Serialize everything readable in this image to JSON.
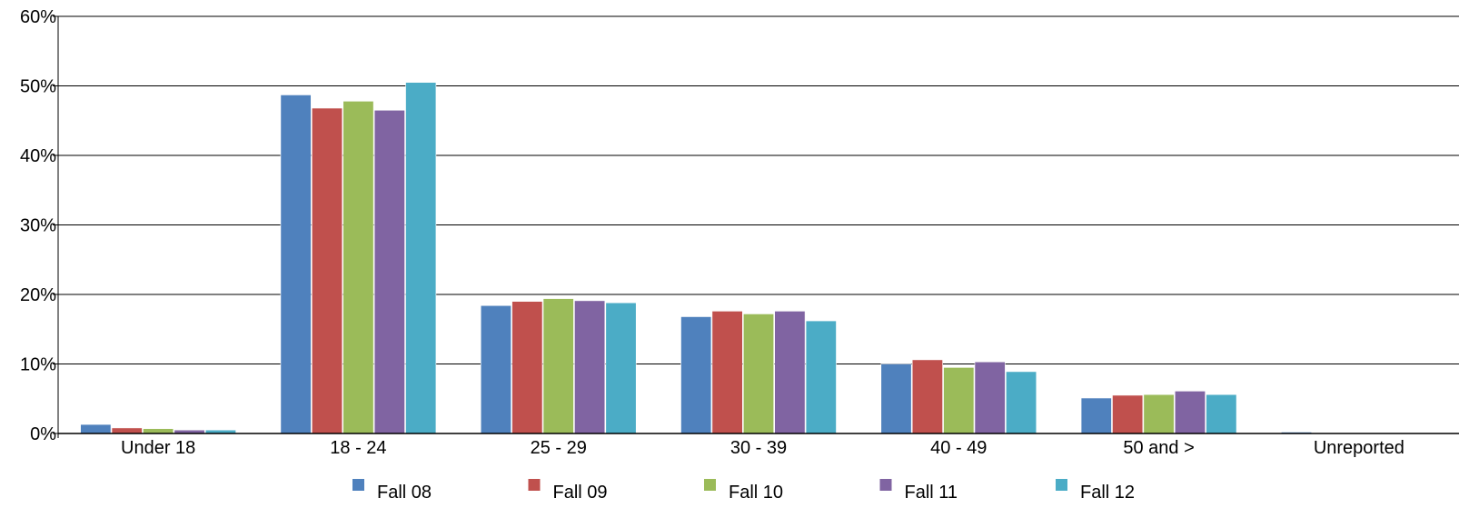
{
  "chart_data": {
    "type": "bar",
    "categories": [
      "Under 18",
      "18 - 24",
      "25 - 29",
      "30 - 39",
      "40 - 49",
      "50 and >",
      "Unreported"
    ],
    "series": [
      {
        "name": "Fall 08",
        "color": "#4f81bd",
        "values": [
          1.3,
          48.7,
          18.4,
          16.8,
          10.0,
          5.1,
          0.2
        ]
      },
      {
        "name": "Fall 09",
        "color": "#c0504d",
        "values": [
          0.8,
          46.8,
          19.0,
          17.6,
          10.6,
          5.5,
          0.1
        ]
      },
      {
        "name": "Fall 10",
        "color": "#9bbb59",
        "values": [
          0.7,
          47.8,
          19.4,
          17.2,
          9.5,
          5.6,
          0.1
        ]
      },
      {
        "name": "Fall 11",
        "color": "#8064a2",
        "values": [
          0.5,
          46.5,
          19.1,
          17.6,
          10.3,
          6.1,
          0.1
        ]
      },
      {
        "name": "Fall 12",
        "color": "#4bacc6",
        "values": [
          0.5,
          50.5,
          18.8,
          16.2,
          8.9,
          5.6,
          0.1
        ]
      }
    ],
    "yticks": [
      "0%",
      "10%",
      "20%",
      "30%",
      "40%",
      "50%",
      "60%"
    ],
    "ylim": [
      0,
      60
    ],
    "grid": true,
    "legend_position": "bottom",
    "title": "",
    "xlabel": "",
    "ylabel": ""
  }
}
